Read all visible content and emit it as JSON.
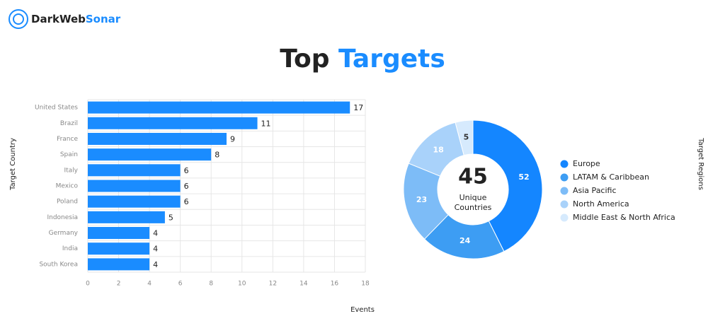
{
  "header": {
    "logo": [
      "DarkWeb",
      "Sonar"
    ],
    "title": [
      "Top",
      "Targets"
    ]
  },
  "chart_data": [
    {
      "type": "bar",
      "orientation": "horizontal",
      "categories": [
        "United States",
        "Brazil",
        "France",
        "Spain",
        "Italy",
        "Mexico",
        "Poland",
        "Indonesia",
        "Germany",
        "India",
        "South Korea"
      ],
      "values": [
        17,
        11,
        9,
        8,
        6,
        6,
        6,
        5,
        4,
        4,
        4
      ],
      "color": "#1a8cff",
      "xlim": [
        0,
        18
      ],
      "xticks": [
        0,
        2,
        4,
        6,
        8,
        10,
        12,
        14,
        16,
        18
      ],
      "xlabel": "Events",
      "ylabel": "Target Country",
      "grid": true
    },
    {
      "type": "donut",
      "categories": [
        "Europe",
        "LATAM & Caribbean",
        "Asia Pacific",
        "North America",
        "Middle East & North Africa"
      ],
      "values": [
        52,
        24,
        23,
        18,
        5
      ],
      "colors": [
        "#1486ff",
        "#3d9df3",
        "#7dbcf7",
        "#a9d2fa",
        "#d6eafd"
      ],
      "center_value": 45,
      "center_label": [
        "Unique",
        "Countries"
      ],
      "side_label": "Target Regions",
      "legend": "right"
    }
  ]
}
